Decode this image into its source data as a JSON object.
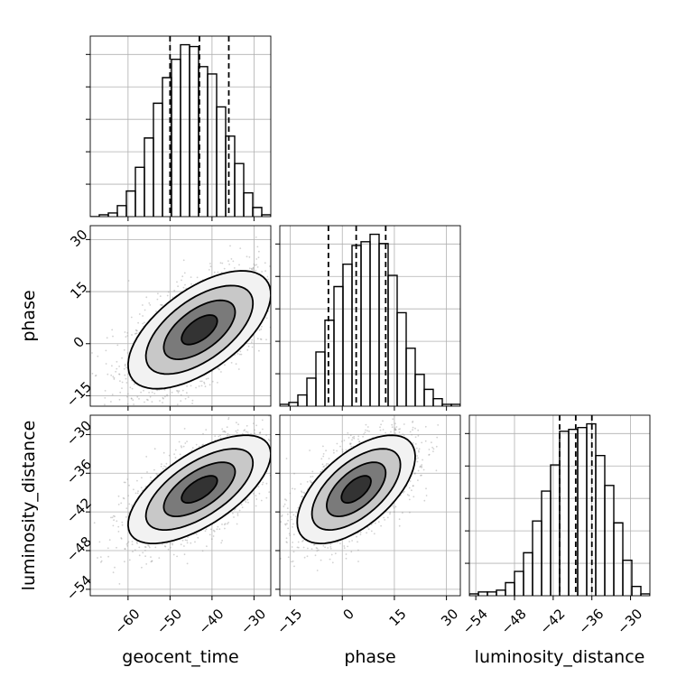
{
  "chart_data": {
    "type": "corner",
    "parameters": [
      "geocent_time",
      "phase",
      "luminosity_distance"
    ],
    "grid": true,
    "axis_ranges": {
      "geocent_time": [
        -69,
        -26
      ],
      "phase": [
        -18,
        34
      ],
      "luminosity_distance": [
        -55,
        -27
      ]
    },
    "ticks": {
      "geocent_time": [
        -60,
        -50,
        -40,
        -30
      ],
      "phase": [
        -15,
        0,
        15,
        30
      ],
      "luminosity_distance": [
        -54,
        -48,
        -42,
        -36,
        -30
      ]
    },
    "tick_labels": {
      "geocent_time": [
        "−60",
        "−50",
        "−40",
        "−30"
      ],
      "phase": [
        "−15",
        "0",
        "15",
        "30"
      ],
      "luminosity_distance": [
        "−54",
        "−48",
        "−42",
        "−36",
        "−30"
      ]
    },
    "quantile_lines": {
      "geocent_time": [
        -50,
        -43,
        -36
      ],
      "phase": [
        -4,
        4,
        12.5
      ],
      "luminosity_distance": [
        -41,
        -38.5,
        -36
      ]
    },
    "histograms": {
      "geocent_time": {
        "edges_start": -69,
        "bin_width": 2.15,
        "counts": [
          0,
          1,
          2,
          6,
          14,
          27,
          43,
          62,
          76,
          86,
          94,
          93,
          82,
          78,
          60,
          44,
          29,
          13,
          5,
          1
        ]
      },
      "phase": {
        "edges_start": -18,
        "bin_width": 2.6,
        "counts": [
          1,
          2,
          6,
          15,
          29,
          46,
          64,
          76,
          86,
          88,
          92,
          87,
          70,
          50,
          31,
          17,
          9,
          4,
          1,
          1
        ]
      },
      "luminosity_distance": {
        "edges_start": -55,
        "bin_width": 1.4,
        "counts": [
          1,
          2,
          2,
          3,
          7,
          13,
          23,
          40,
          56,
          70,
          88,
          89,
          90,
          92,
          75,
          59,
          39,
          19,
          5,
          1
        ]
      }
    },
    "contours_2d": {
      "geocent_time_vs_phase": {
        "mean": [
          -43,
          4
        ],
        "sd": [
          8.5,
          8.5
        ],
        "rho": 0.6,
        "sigma_levels": [
          0.5,
          1,
          1.5,
          2
        ]
      },
      "geocent_time_vs_luminosity_distance": {
        "mean": [
          -43,
          -38.5
        ],
        "sd": [
          8.5,
          4.2
        ],
        "rho": 0.65,
        "sigma_levels": [
          0.5,
          1,
          1.5,
          2
        ]
      },
      "phase_vs_luminosity_distance": {
        "mean": [
          4,
          -38.5
        ],
        "sd": [
          8.5,
          4.2
        ],
        "rho": 0.6,
        "sigma_levels": [
          0.5,
          1,
          1.5,
          2
        ]
      }
    }
  }
}
